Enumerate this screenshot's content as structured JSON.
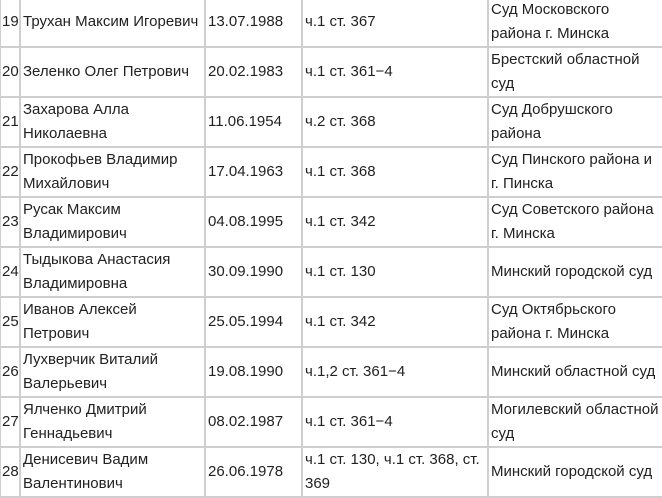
{
  "rows": [
    {
      "num": "19",
      "name": "Трухан Максим Игоревич",
      "date": "13.07.1988",
      "article": "ч.1 ст. 367",
      "court": "Суд Московского района г. Минска"
    },
    {
      "num": "20",
      "name": "Зеленко Олег Петрович",
      "date": "20.02.1983",
      "article": "ч.1 ст. 361−4",
      "court": "Брестский областной суд"
    },
    {
      "num": "21",
      "name": "Захарова Алла Николаевна",
      "date": "11.06.1954",
      "article": "ч.2 ст. 368",
      "court": "Суд Добрушского района"
    },
    {
      "num": "22",
      "name": "Прокофьев Владимир Михайлович",
      "date": "17.04.1963",
      "article": "ч.1 ст. 368",
      "court": "Суд Пинского района и г. Пинска"
    },
    {
      "num": "23",
      "name": "Русак Максим Владимирович",
      "date": "04.08.1995",
      "article": "ч.1 ст. 342",
      "court": "Суд Советского района г. Минска"
    },
    {
      "num": "24",
      "name": "Тыдыкова Анастасия Владимировна",
      "date": "30.09.1990",
      "article": "ч.1 ст. 130",
      "court": "Минский городской суд"
    },
    {
      "num": "25",
      "name": "Иванов Алексей Петрович",
      "date": "25.05.1994",
      "article": "ч.1 ст. 342",
      "court": "Суд Октябрьского района г. Минска"
    },
    {
      "num": "26",
      "name": "Лухверчик Виталий Валерьевич",
      "date": "19.08.1990",
      "article": "ч.1,2 ст. 361−4",
      "court": "Минский областной суд"
    },
    {
      "num": "27",
      "name": "Ялченко Дмитрий Геннадьевич",
      "date": "08.02.1987",
      "article": "ч.1 ст. 361−4",
      "court": "Могилевский областной суд"
    },
    {
      "num": "28",
      "name": "Денисевич Вадим Валентинович",
      "date": "26.06.1978",
      "article": "ч.1 ст. 130, ч.1 ст. 368, ст. 369",
      "court": "Минский городской суд"
    }
  ]
}
